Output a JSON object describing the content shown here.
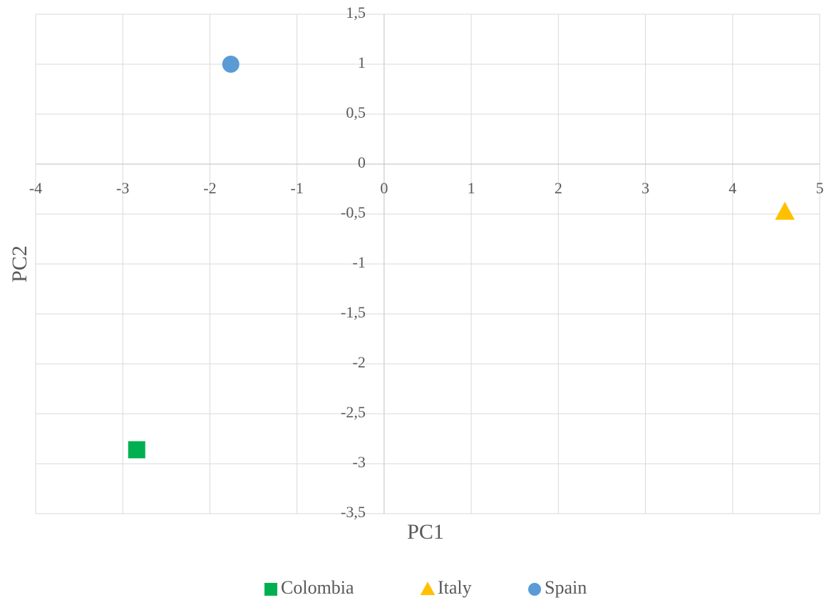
{
  "chart_data": {
    "type": "scatter",
    "x_label": "PC1",
    "y_label": "PC2",
    "xlim": [
      -4,
      5
    ],
    "xticks": [
      -4,
      -3,
      -2,
      -1,
      0,
      1,
      2,
      3,
      4,
      5
    ],
    "ylim": [
      -3.5,
      1.5
    ],
    "yticks": [
      {
        "value": -3.5,
        "label": "-3,5"
      },
      -3,
      {
        "value": -2.5,
        "label": "-2,5"
      },
      -2,
      {
        "value": -1.5,
        "label": "-1,5"
      },
      -1,
      {
        "value": -0.5,
        "label": "-0,5"
      },
      0,
      {
        "value": 0.5,
        "label": "0,5"
      },
      1,
      {
        "value": 1.5,
        "label": "1,5"
      }
    ],
    "grid": true,
    "legend": "bottom",
    "series": [
      {
        "name": "Colombia",
        "color": "#00b050",
        "marker": "square",
        "x": [
          -2.84
        ],
        "values": [
          -2.86
        ]
      },
      {
        "name": "Italy",
        "color": "#ffc000",
        "marker": "triangle",
        "x": [
          4.6
        ],
        "values": [
          -0.48
        ]
      },
      {
        "name": "Spain",
        "color": "#5b9bd5",
        "marker": "circle",
        "x": [
          -1.76
        ],
        "values": [
          1.0
        ]
      }
    ]
  }
}
